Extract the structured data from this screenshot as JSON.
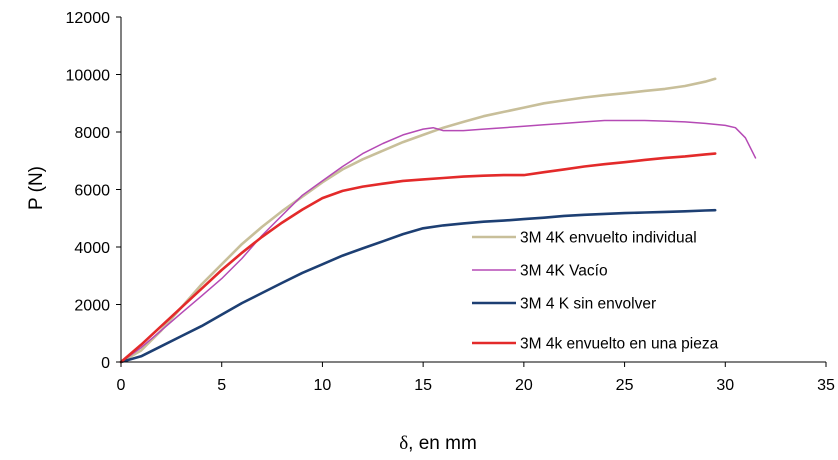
{
  "chart_data": {
    "type": "line",
    "title": "",
    "xlabel_symbol": "δ",
    "xlabel_text": ", en mm",
    "ylabel": "P (N)",
    "xlim": [
      0,
      35
    ],
    "ylim": [
      0,
      12000
    ],
    "xticks": [
      0,
      5,
      10,
      15,
      20,
      25,
      30,
      35
    ],
    "yticks": [
      0,
      2000,
      4000,
      6000,
      8000,
      10000,
      12000
    ],
    "grid": false,
    "legend_position": "right-center",
    "series": [
      {
        "name": "3M 4K envuelto individual",
        "color": "#c8bf9a",
        "x": [
          0,
          1,
          2,
          3,
          4,
          5,
          6,
          7,
          8,
          9,
          10,
          11,
          12,
          13,
          14,
          15,
          16,
          17,
          18,
          19,
          20,
          21,
          22,
          23,
          24,
          25,
          26,
          27,
          28,
          29,
          29.5
        ],
        "y": [
          0,
          400,
          1100,
          1900,
          2700,
          3400,
          4100,
          4700,
          5250,
          5750,
          6250,
          6700,
          7050,
          7350,
          7650,
          7900,
          8150,
          8350,
          8550,
          8700,
          8850,
          9000,
          9100,
          9200,
          9280,
          9350,
          9430,
          9500,
          9600,
          9750,
          9850
        ]
      },
      {
        "name": "3M 4K Vacío",
        "color": "#b54ab5",
        "x": [
          0,
          1,
          2,
          3,
          4,
          5,
          6,
          7,
          8,
          9,
          10,
          11,
          12,
          13,
          14,
          15,
          15.5,
          16,
          17,
          18,
          19,
          20,
          21,
          22,
          23,
          24,
          25,
          26,
          27,
          28,
          29,
          30,
          30.5,
          31,
          31.5
        ],
        "y": [
          0,
          500,
          1100,
          1700,
          2300,
          2900,
          3600,
          4400,
          5100,
          5800,
          6300,
          6800,
          7250,
          7600,
          7900,
          8100,
          8150,
          8050,
          8050,
          8100,
          8150,
          8200,
          8250,
          8300,
          8350,
          8400,
          8400,
          8400,
          8380,
          8350,
          8300,
          8230,
          8150,
          7800,
          7100
        ]
      },
      {
        "name": "3M 4 K sin envolver",
        "color": "#1d3f73",
        "x": [
          0,
          1,
          2,
          3,
          4,
          5,
          6,
          7,
          8,
          9,
          10,
          11,
          12,
          13,
          14,
          15,
          16,
          17,
          18,
          19,
          20,
          21,
          22,
          23,
          24,
          25,
          26,
          27,
          28,
          29,
          29.5
        ],
        "y": [
          0,
          200,
          550,
          900,
          1250,
          1650,
          2050,
          2400,
          2750,
          3100,
          3400,
          3700,
          3950,
          4200,
          4450,
          4650,
          4750,
          4820,
          4880,
          4920,
          4970,
          5020,
          5080,
          5120,
          5150,
          5180,
          5200,
          5220,
          5240,
          5270,
          5280
        ]
      },
      {
        "name": "3M 4k envuelto en una pieza",
        "color": "#e32a2a",
        "x": [
          0,
          1,
          2,
          3,
          4,
          5,
          6,
          7,
          8,
          9,
          10,
          11,
          12,
          13,
          14,
          15,
          16,
          17,
          18,
          19,
          20,
          21,
          22,
          23,
          24,
          25,
          26,
          27,
          28,
          29,
          29.5
        ],
        "y": [
          0,
          600,
          1250,
          1900,
          2550,
          3200,
          3800,
          4350,
          4850,
          5300,
          5700,
          5950,
          6100,
          6200,
          6300,
          6350,
          6400,
          6450,
          6480,
          6500,
          6500,
          6600,
          6700,
          6800,
          6880,
          6950,
          7030,
          7100,
          7150,
          7220,
          7250
        ]
      }
    ]
  }
}
